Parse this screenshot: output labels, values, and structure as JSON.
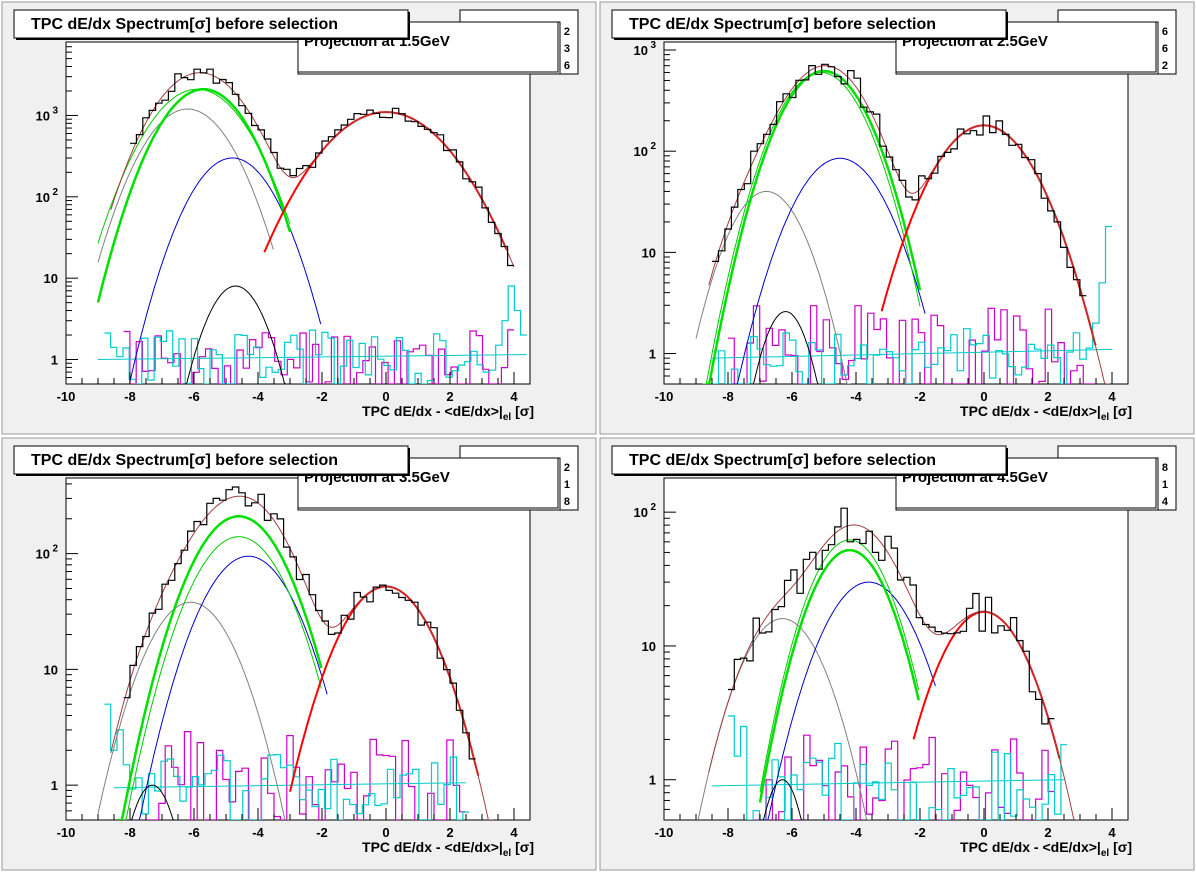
{
  "chart_data": [
    {
      "type": "line",
      "title": "TPC dE/dx Spectrum[σ] before selection",
      "subtitle": "Projection at 1.5GeV",
      "xlabel": "TPC dE/dx - <dE/dx>|el [σ]",
      "xlabel_parts": {
        "main": "TPC dE/dx - <dE/dx>|",
        "sub": "el",
        "tail": " [σ]"
      },
      "xlim": [
        -10,
        4.5
      ],
      "ylim": [
        0.5,
        8000
      ],
      "yscale": "log",
      "xticks": [
        -10,
        -8,
        -6,
        -4,
        -2,
        0,
        2,
        4
      ],
      "yticks": [
        {
          "v": 1,
          "label": "1"
        },
        {
          "v": 10,
          "label": "10"
        },
        {
          "v": 100,
          "label": "10",
          "exp": "2"
        },
        {
          "v": 1000,
          "label": "10",
          "exp": "3"
        }
      ],
      "stats_box": [
        "2",
        "3",
        "6"
      ],
      "components": [
        {
          "color": "#808080",
          "width": 1,
          "amp": 1200,
          "mean": -6.2,
          "sigma": 0.95,
          "range": [
            -9,
            -3.5
          ]
        },
        {
          "color": "#0000cc",
          "width": 1,
          "amp": 300,
          "mean": -4.8,
          "sigma": 0.9,
          "range": [
            -8,
            -2
          ]
        },
        {
          "color": "#000000",
          "width": 1,
          "amp": 8,
          "mean": -4.7,
          "sigma": 0.65,
          "range": [
            -6.5,
            -3
          ]
        },
        {
          "color": "#00cc00",
          "width": 1,
          "amp": 2100,
          "mean": -5.9,
          "sigma": 1.05,
          "range": [
            -9,
            -3
          ]
        },
        {
          "color": "#00e000",
          "width": 2.5,
          "amp": 2100,
          "mean": -5.7,
          "sigma": 0.95,
          "range": [
            -9,
            -3
          ]
        },
        {
          "color": "#ff0000",
          "width": 2,
          "amp": 1100,
          "mean": 0.0,
          "sigma": 1.35,
          "range": [
            -3.8,
            3.8
          ]
        }
      ],
      "flat_lines": [
        {
          "color": "#00cccc",
          "y0": 1.0,
          "y1": 1.15,
          "range": [
            -9,
            4.4
          ]
        }
      ],
      "noise_hists": [
        {
          "color": "#cc00cc",
          "range": [
            -8.2,
            4.0
          ],
          "bins": 62,
          "base": 1.0,
          "spread": 0.85,
          "seed": 11
        },
        {
          "color": "#00cccc",
          "range": [
            -8.8,
            4.4
          ],
          "bins": 68,
          "base": 1.05,
          "spread": 0.7,
          "seed": 23,
          "tail": [
            1.5,
            3,
            8,
            4,
            2
          ]
        }
      ],
      "data_hist": {
        "range": [
          -8.0,
          4.0
        ],
        "bins": 60,
        "noise": 0.18,
        "seed": 5
      }
    },
    {
      "type": "line",
      "title": "TPC dE/dx Spectrum[σ] before selection",
      "subtitle": "Projection at 2.5GeV",
      "xlabel": "TPC dE/dx - <dE/dx>|el [σ]",
      "xlabel_parts": {
        "main": "TPC dE/dx - <dE/dx>|",
        "sub": "el",
        "tail": " [σ]"
      },
      "xlim": [
        -10,
        4.5
      ],
      "ylim": [
        0.5,
        1200
      ],
      "yscale": "log",
      "xticks": [
        -10,
        -8,
        -6,
        -4,
        -2,
        0,
        2,
        4
      ],
      "yticks": [
        {
          "v": 1,
          "label": "1"
        },
        {
          "v": 10,
          "label": "10"
        },
        {
          "v": 100,
          "label": "10",
          "exp": "2"
        },
        {
          "v": 1000,
          "label": "10",
          "exp": "3"
        }
      ],
      "stats_box": [
        "6",
        "6",
        "2"
      ],
      "components": [
        {
          "color": "#808080",
          "width": 1,
          "amp": 40,
          "mean": -6.8,
          "sigma": 0.85,
          "range": [
            -9,
            -4
          ]
        },
        {
          "color": "#0000cc",
          "width": 1,
          "amp": 85,
          "mean": -4.5,
          "sigma": 1.0,
          "range": [
            -8,
            -1.8
          ]
        },
        {
          "color": "#000000",
          "width": 1,
          "amp": 2.6,
          "mean": -6.2,
          "sigma": 0.55,
          "range": [
            -7.5,
            -5
          ]
        },
        {
          "color": "#00cc00",
          "width": 1,
          "amp": 600,
          "mean": -5.1,
          "sigma": 0.95,
          "range": [
            -9,
            -2
          ]
        },
        {
          "color": "#00e000",
          "width": 2.5,
          "amp": 620,
          "mean": -5.0,
          "sigma": 0.95,
          "range": [
            -9,
            -2
          ]
        },
        {
          "color": "#ff0000",
          "width": 2,
          "amp": 180,
          "mean": 0.0,
          "sigma": 1.1,
          "range": [
            -3.2,
            3.5
          ]
        }
      ],
      "flat_lines": [
        {
          "color": "#00cccc",
          "y0": 0.9,
          "y1": 1.1,
          "range": [
            -8.5,
            4.0
          ]
        }
      ],
      "noise_hists": [
        {
          "color": "#cc00cc",
          "range": [
            -8.0,
            3.5
          ],
          "bins": 58,
          "base": 1.1,
          "spread": 0.9,
          "seed": 31
        },
        {
          "color": "#00cccc",
          "range": [
            -8.5,
            4.0
          ],
          "bins": 62,
          "base": 1.0,
          "spread": 0.5,
          "seed": 41,
          "tail": [
            2,
            5,
            18
          ]
        }
      ],
      "data_hist": {
        "range": [
          -8.5,
          3.2
        ],
        "bins": 58,
        "noise": 0.22,
        "seed": 7
      }
    },
    {
      "type": "line",
      "title": "TPC dE/dx Spectrum[σ] before selection",
      "subtitle": "Projection at 3.5GeV",
      "xlabel": "TPC dE/dx - <dE/dx>|el [σ]",
      "xlabel_parts": {
        "main": "TPC dE/dx - <dE/dx>|",
        "sub": "el",
        "tail": " [σ]"
      },
      "xlim": [
        -10,
        4.5
      ],
      "ylim": [
        0.5,
        450
      ],
      "yscale": "log",
      "xticks": [
        -10,
        -8,
        -6,
        -4,
        -2,
        0,
        2,
        4
      ],
      "yticks": [
        {
          "v": 1,
          "label": "1"
        },
        {
          "v": 10,
          "label": "10"
        },
        {
          "v": 100,
          "label": "10",
          "exp": "2"
        }
      ],
      "stats_box": [
        "2",
        "1",
        "8"
      ],
      "components": [
        {
          "color": "#808080",
          "width": 1,
          "amp": 38,
          "mean": -6.1,
          "sigma": 1.0,
          "range": [
            -9,
            -3
          ]
        },
        {
          "color": "#0000cc",
          "width": 1,
          "amp": 95,
          "mean": -4.3,
          "sigma": 1.05,
          "range": [
            -8,
            -1.8
          ]
        },
        {
          "color": "#000000",
          "width": 1,
          "amp": 1.0,
          "mean": -7.3,
          "sigma": 0.55,
          "range": [
            -8.5,
            -6.5
          ]
        },
        {
          "color": "#00cc00",
          "width": 1,
          "amp": 140,
          "mean": -4.6,
          "sigma": 1.05,
          "range": [
            -8.5,
            -2
          ]
        },
        {
          "color": "#00e000",
          "width": 2.5,
          "amp": 210,
          "mean": -4.6,
          "sigma": 1.05,
          "range": [
            -8.5,
            -2
          ]
        },
        {
          "color": "#ff0000",
          "width": 2,
          "amp": 52,
          "mean": 0.0,
          "sigma": 1.05,
          "range": [
            -3.0,
            2.9
          ]
        }
      ],
      "flat_lines": [
        {
          "color": "#00cccc",
          "y0": 0.95,
          "y1": 1.05,
          "range": [
            -8.5,
            2.5
          ]
        }
      ],
      "noise_hists": [
        {
          "color": "#cc00cc",
          "range": [
            -7.5,
            2.5
          ],
          "bins": 50,
          "base": 1.1,
          "spread": 0.95,
          "seed": 51
        },
        {
          "color": "#00cccc",
          "range": [
            -8.8,
            2.6
          ],
          "bins": 58,
          "base": 1.0,
          "spread": 0.55,
          "seed": 61,
          "head": [
            5,
            2,
            3,
            1.5
          ]
        }
      ],
      "data_hist": {
        "range": [
          -8.2,
          2.8
        ],
        "bins": 55,
        "noise": 0.2,
        "seed": 9
      }
    },
    {
      "type": "line",
      "title": "TPC dE/dx Spectrum[σ] before selection",
      "subtitle": "Projection at 4.5GeV",
      "xlabel": "TPC dE/dx - <dE/dx>|el [σ]",
      "xlabel_parts": {
        "main": "TPC dE/dx - <dE/dx>|",
        "sub": "el",
        "tail": " [σ]"
      },
      "xlim": [
        -10,
        4.5
      ],
      "ylim": [
        0.5,
        180
      ],
      "yscale": "log",
      "xticks": [
        -10,
        -8,
        -6,
        -4,
        -2,
        0,
        2,
        4
      ],
      "yticks": [
        {
          "v": 1,
          "label": "1"
        },
        {
          "v": 10,
          "label": "10"
        },
        {
          "v": 100,
          "label": "10",
          "exp": "2"
        }
      ],
      "stats_box": [
        "8",
        "1",
        "4"
      ],
      "components": [
        {
          "color": "#808080",
          "width": 1,
          "amp": 16,
          "mean": -6.3,
          "sigma": 1.0,
          "range": [
            -9,
            -3.5
          ]
        },
        {
          "color": "#0000cc",
          "width": 1,
          "amp": 30,
          "mean": -3.6,
          "sigma": 1.1,
          "range": [
            -7,
            -1.5
          ]
        },
        {
          "color": "#000000",
          "width": 1,
          "amp": 1.0,
          "mean": -6.3,
          "sigma": 0.5,
          "range": [
            -7.2,
            -5.5
          ]
        },
        {
          "color": "#00cc00",
          "width": 1,
          "amp": 62,
          "mean": -4.2,
          "sigma": 0.95,
          "range": [
            -7,
            -2
          ]
        },
        {
          "color": "#00e000",
          "width": 2.5,
          "amp": 52,
          "mean": -4.2,
          "sigma": 0.95,
          "range": [
            -7,
            -2
          ]
        },
        {
          "color": "#ff0000",
          "width": 2,
          "amp": 18,
          "mean": 0.0,
          "sigma": 1.05,
          "range": [
            -2.2,
            2.4
          ]
        }
      ],
      "flat_lines": [
        {
          "color": "#00cccc",
          "y0": 0.9,
          "y1": 1.0,
          "range": [
            -8.5,
            2.5
          ]
        }
      ],
      "noise_hists": [
        {
          "color": "#cc00cc",
          "range": [
            -7.2,
            2.2
          ],
          "bins": 48,
          "base": 0.9,
          "spread": 0.8,
          "seed": 71
        },
        {
          "color": "#00cccc",
          "range": [
            -8.0,
            2.6
          ],
          "bins": 54,
          "base": 1.0,
          "spread": 0.55,
          "seed": 81,
          "head": [
            3,
            1.5,
            2.5
          ]
        }
      ],
      "data_hist": {
        "range": [
          -8.0,
          2.2
        ],
        "bins": 52,
        "noise": 0.3,
        "seed": 13
      }
    }
  ]
}
